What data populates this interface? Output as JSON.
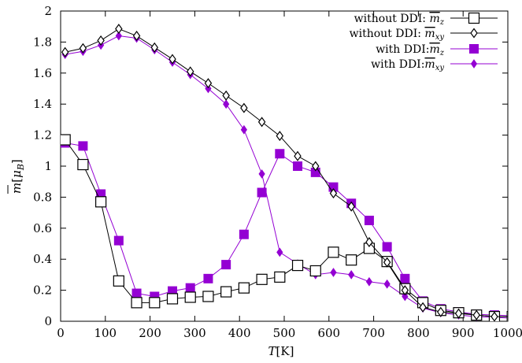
{
  "chart_data": {
    "type": "line",
    "xlabel_main": "T",
    "xlabel_unit": "[K]",
    "ylabel_main": "m",
    "ylabel_unit": "μ",
    "ylabel_sub": "B",
    "xlim": [
      0,
      1000
    ],
    "ylim": [
      0,
      2
    ],
    "xticks": [
      0,
      100,
      200,
      300,
      400,
      500,
      600,
      700,
      800,
      900,
      1000
    ],
    "yticks": [
      0,
      0.2,
      0.4,
      0.6,
      0.8,
      1,
      1.2,
      1.4,
      1.6,
      1.8,
      2
    ],
    "ytick_labels": [
      "0",
      "0.2",
      "0.4",
      "0.6",
      "0.8",
      "1",
      "1.2",
      "1.4",
      "1.6",
      "1.8",
      "2"
    ],
    "grid": false,
    "legend_position": "top-right",
    "x": [
      10,
      50,
      90,
      130,
      170,
      210,
      250,
      290,
      330,
      370,
      410,
      450,
      490,
      530,
      570,
      610,
      650,
      690,
      730,
      770,
      810,
      850,
      890,
      930,
      970,
      1010
    ],
    "series": [
      {
        "name": "without DDI: m_z",
        "legend_prefix": "without DDI: ",
        "legend_symbol": "m",
        "legend_sub": "z",
        "color": "#000000",
        "marker": "square-open",
        "values": [
          1.17,
          1.01,
          0.77,
          0.26,
          0.12,
          0.12,
          0.145,
          0.155,
          0.16,
          0.19,
          0.215,
          0.27,
          0.285,
          0.36,
          0.325,
          0.445,
          0.395,
          0.47,
          0.385,
          0.21,
          0.12,
          0.07,
          0.055,
          0.04,
          0.03,
          0.03
        ]
      },
      {
        "name": "without DDI: m_xy",
        "legend_prefix": "without DDI: ",
        "legend_symbol": "m",
        "legend_sub": "xy",
        "color": "#000000",
        "marker": "diamond-open",
        "values": [
          1.735,
          1.76,
          1.81,
          1.885,
          1.84,
          1.765,
          1.69,
          1.61,
          1.535,
          1.455,
          1.375,
          1.285,
          1.195,
          1.065,
          1.0,
          0.825,
          0.74,
          0.51,
          0.38,
          0.2,
          0.09,
          0.06,
          0.05,
          0.04,
          0.03,
          0.03
        ]
      },
      {
        "name": "with DDI: m_z",
        "legend_prefix": "with DDI:",
        "legend_symbol": "m",
        "legend_sub": "z",
        "color": "#9400D3",
        "marker": "square-filled",
        "values": [
          1.15,
          1.13,
          0.82,
          0.52,
          0.18,
          0.16,
          0.195,
          0.215,
          0.275,
          0.365,
          0.56,
          0.83,
          1.08,
          1.0,
          0.96,
          0.865,
          0.76,
          0.65,
          0.48,
          0.275,
          0.13,
          0.08,
          0.06,
          0.045,
          0.04,
          0.035
        ]
      },
      {
        "name": "with DDI: m_xy",
        "legend_prefix": "with DDI:",
        "legend_symbol": "m",
        "legend_sub": "xy",
        "color": "#9400D3",
        "marker": "diamond-filled",
        "values": [
          1.72,
          1.74,
          1.78,
          1.84,
          1.825,
          1.75,
          1.67,
          1.59,
          1.5,
          1.4,
          1.235,
          0.95,
          0.445,
          0.37,
          0.3,
          0.315,
          0.3,
          0.255,
          0.24,
          0.16,
          0.085,
          0.055,
          0.04,
          0.03,
          0.025,
          0.02
        ]
      }
    ]
  }
}
